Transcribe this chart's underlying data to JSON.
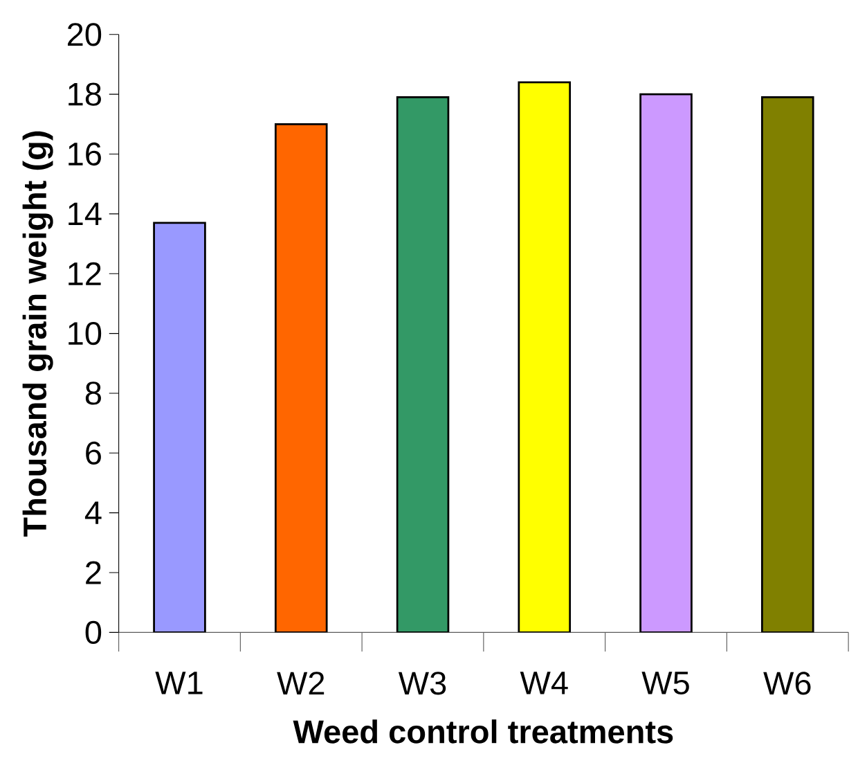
{
  "chart_data": {
    "type": "bar",
    "xlabel": "Weed control treatments",
    "ylabel": "Thousand grain weight (g)",
    "categories": [
      "W1",
      "W2",
      "W3",
      "W4",
      "W5",
      "W6"
    ],
    "values": [
      13.7,
      17.0,
      17.9,
      18.4,
      18.0,
      17.9
    ],
    "colors": [
      "#9999ff",
      "#ff6600",
      "#339966",
      "#ffff00",
      "#cc99ff",
      "#808000"
    ],
    "ylim": [
      0,
      20
    ],
    "yticks": [
      0,
      2,
      4,
      6,
      8,
      10,
      12,
      14,
      16,
      18,
      20
    ]
  }
}
